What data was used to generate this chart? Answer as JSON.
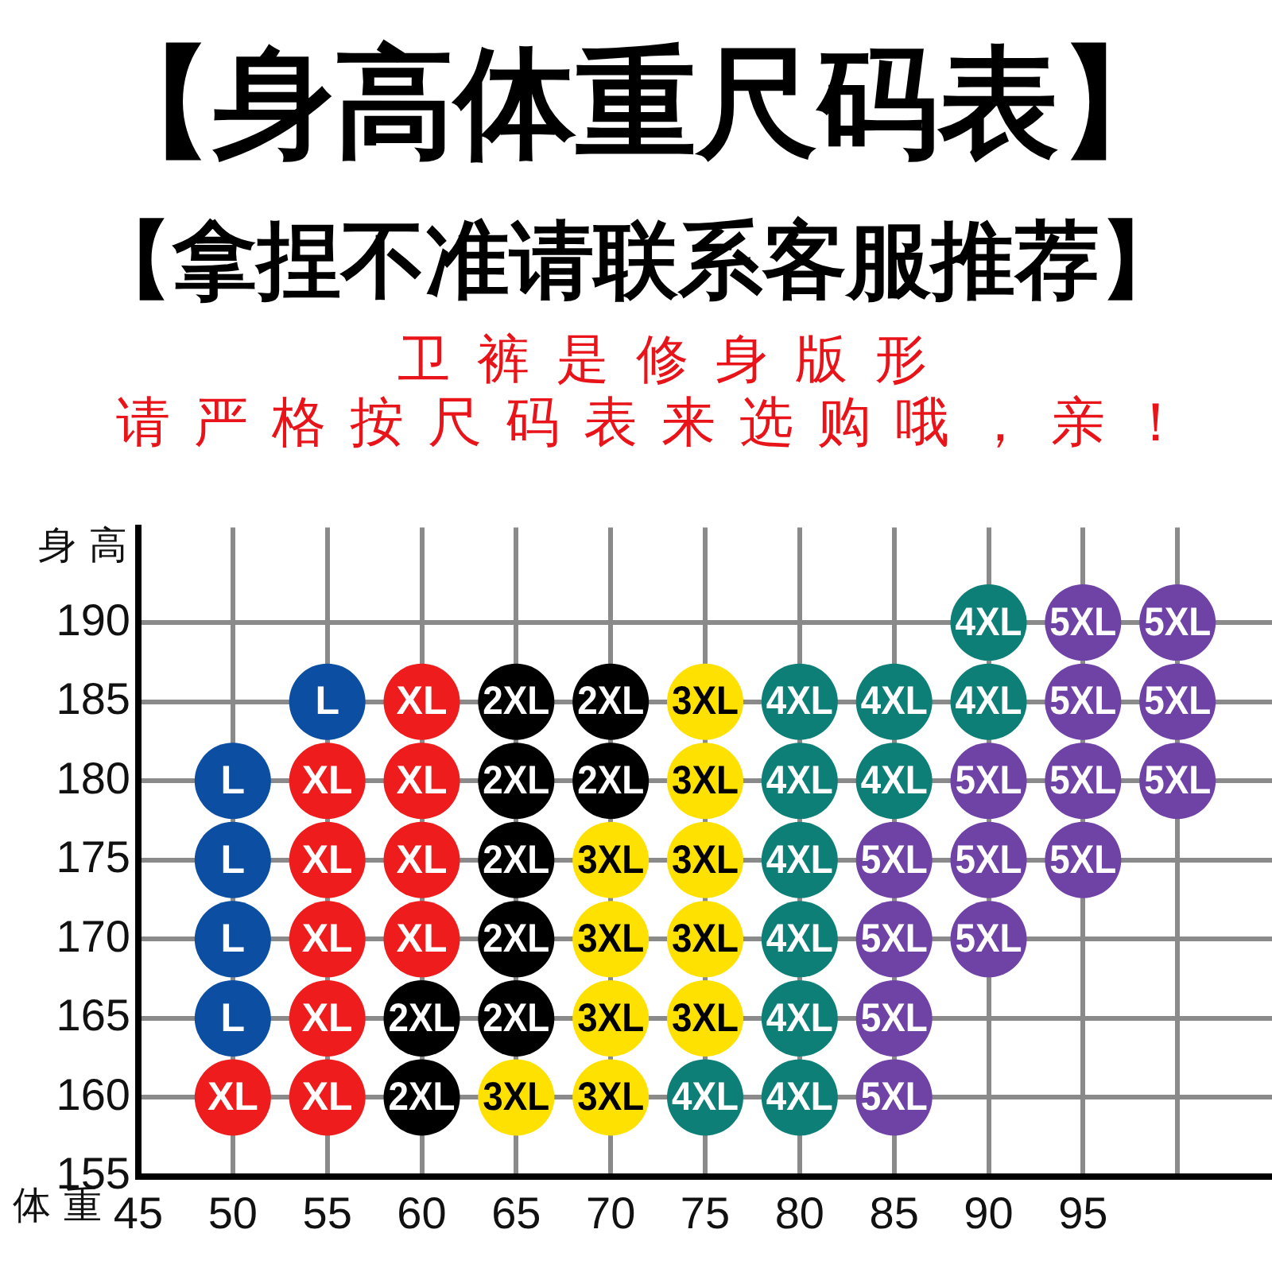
{
  "chart_data": {
    "type": "scatter",
    "title": "【身高体重尺码表】",
    "subtitle": "【拿捏不准请联系客服推荐】",
    "annotations": [
      "卫裤是修身版形",
      "请严格按尺码表来选购哦，亲！"
    ],
    "xlabel": "体重",
    "ylabel": "身高",
    "xlim": [
      45,
      105
    ],
    "xticks": [
      45,
      50,
      55,
      60,
      65,
      70,
      75,
      80,
      85,
      90,
      95,
      {
        "value": 100,
        "label": null
      }
    ],
    "ylim": [
      155,
      196
    ],
    "yticks": [
      155,
      160,
      165,
      170,
      175,
      180,
      185,
      190
    ],
    "grid": true,
    "marker": "circle",
    "series": [
      {
        "name": "L",
        "color": "#0b4ea2",
        "x": [
          55,
          50,
          50,
          50,
          50
        ],
        "values": [
          185,
          180,
          175,
          170,
          165
        ]
      },
      {
        "name": "XL",
        "color": "#ee1c1c",
        "x": [
          60,
          55,
          60,
          55,
          60,
          55,
          60,
          55,
          50,
          55
        ],
        "values": [
          185,
          180,
          180,
          175,
          175,
          170,
          170,
          165,
          160,
          160
        ]
      },
      {
        "name": "2XL",
        "color": "#000000",
        "x": [
          65,
          70,
          65,
          70,
          65,
          65,
          60,
          65,
          60
        ],
        "values": [
          185,
          185,
          180,
          180,
          175,
          170,
          165,
          165,
          160
        ]
      },
      {
        "name": "3XL",
        "color": "#ffe100",
        "x": [
          75,
          75,
          70,
          75,
          70,
          75,
          70,
          75,
          65,
          70
        ],
        "values": [
          185,
          180,
          175,
          175,
          170,
          170,
          165,
          165,
          160,
          160
        ]
      },
      {
        "name": "4XL",
        "color": "#0e7f76",
        "x": [
          90,
          80,
          85,
          90,
          80,
          85,
          80,
          80,
          80,
          75,
          80
        ],
        "values": [
          190,
          185,
          185,
          185,
          180,
          180,
          175,
          170,
          165,
          160,
          160
        ]
      },
      {
        "name": "5XL",
        "color": "#6f42a6",
        "x": [
          95,
          100,
          95,
          100,
          90,
          95,
          100,
          85,
          90,
          95,
          85,
          90,
          85,
          85
        ],
        "values": [
          190,
          190,
          185,
          185,
          180,
          180,
          180,
          175,
          175,
          175,
          170,
          170,
          165,
          160
        ]
      }
    ]
  }
}
